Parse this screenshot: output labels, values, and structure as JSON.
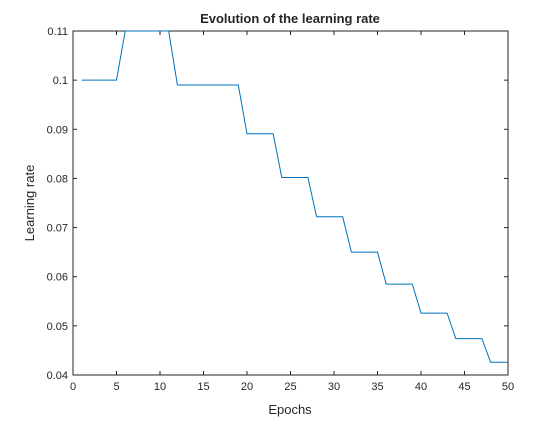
{
  "chart_data": {
    "type": "line",
    "title": "Evolution of the learning rate",
    "xlabel": "Epochs",
    "ylabel": "Learning rate",
    "xlim": [
      0,
      50
    ],
    "ylim": [
      0.04,
      0.11
    ],
    "xticks": [
      0,
      5,
      10,
      15,
      20,
      25,
      30,
      35,
      40,
      45,
      50
    ],
    "yticks": [
      0.04,
      0.05,
      0.06,
      0.07,
      0.08,
      0.09,
      0.1,
      0.11
    ],
    "xtick_labels": [
      "0",
      "5",
      "10",
      "15",
      "20",
      "25",
      "30",
      "35",
      "40",
      "45",
      "50"
    ],
    "ytick_labels": [
      "0.04",
      "0.05",
      "0.06",
      "0.07",
      "0.08",
      "0.09",
      "0.1",
      "0.11"
    ],
    "grid": false,
    "series": [
      {
        "color": "#0072BD",
        "x": [
          1,
          5,
          6,
          11,
          12,
          19,
          20,
          23,
          24,
          27,
          28,
          31,
          32,
          35,
          36,
          39,
          40,
          43,
          44,
          47,
          48,
          50
        ],
        "y": [
          0.1,
          0.1,
          0.11,
          0.11,
          0.099,
          0.099,
          0.0891,
          0.0891,
          0.0802,
          0.0802,
          0.0722,
          0.0722,
          0.065,
          0.065,
          0.0585,
          0.0585,
          0.0526,
          0.0526,
          0.0474,
          0.0474,
          0.0426,
          0.0426
        ]
      }
    ]
  }
}
